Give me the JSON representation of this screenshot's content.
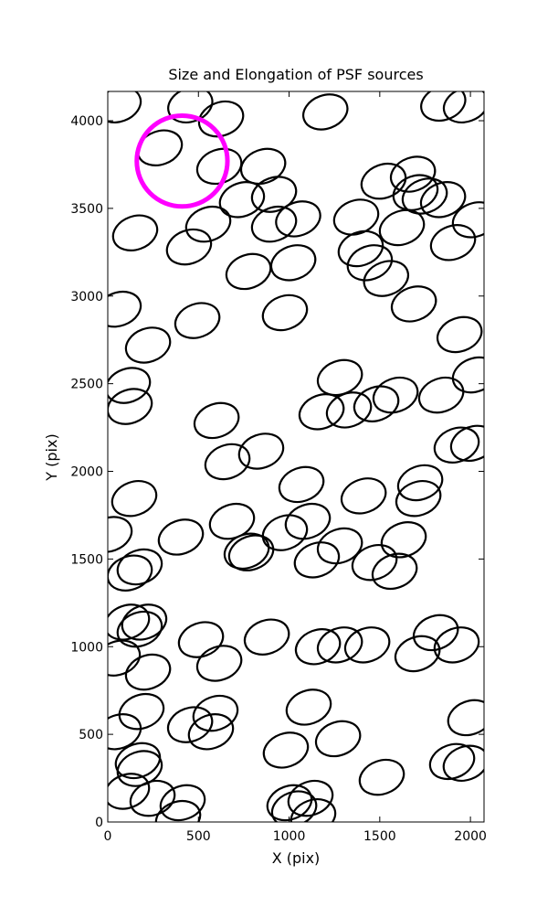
{
  "chart_data": {
    "type": "ellipse",
    "title": "Size and Elongation of PSF sources",
    "xlabel": "X (pix)",
    "ylabel": "Y (pix)",
    "xlim": [
      0,
      2075
    ],
    "ylim": [
      0,
      4167
    ],
    "xticks": [
      0,
      500,
      1000,
      1500,
      2000
    ],
    "yticks": [
      0,
      500,
      1000,
      1500,
      2000,
      2500,
      3000,
      3500,
      4000
    ],
    "color": "#000000",
    "width": 250,
    "height": 190,
    "angle": -20,
    "x": [
      60,
      455,
      625,
      1200,
      1850,
      1975,
      287,
      615,
      857,
      740,
      917,
      917,
      1050,
      554,
      151,
      448,
      776,
      1023,
      1370,
      1395,
      1445,
      1535,
      1521,
      1622,
      1697,
      1683,
      1748,
      1849,
      1904,
      2025,
      1688,
      60,
      494,
      977,
      222,
      1940,
      111,
      121,
      1280,
      1179,
      1330,
      1481,
      1587,
      1839,
      2025,
      600,
      660,
      846,
      1068,
      1411,
      1723,
      1713,
      1924,
      2015,
      146,
      10,
      403,
      685,
      766,
      791,
      977,
      1103,
      1153,
      1280,
      1471,
      1582,
      1632,
      176,
      121,
      106,
      201,
      176,
      55,
      514,
      615,
      222,
      877,
      1159,
      1280,
      1431,
      1708,
      1809,
      1924,
      186,
      594,
      569,
      454,
      60,
      1108,
      1270,
      982,
      1511,
      1999,
      1899,
      1974,
      166,
      176,
      106,
      247,
      413,
      388,
      1002,
      1118,
      1133,
      1028
    ],
    "y": [
      4090,
      4090,
      4010,
      4050,
      4100,
      4090,
      3845,
      3740,
      3740,
      3550,
      3580,
      3410,
      3440,
      3410,
      3360,
      3280,
      3140,
      3190,
      3450,
      3270,
      3190,
      3100,
      3655,
      3390,
      3590,
      3695,
      3570,
      3550,
      3305,
      3435,
      2955,
      2925,
      2860,
      2905,
      2720,
      2780,
      2490,
      2370,
      2535,
      2340,
      2350,
      2385,
      2435,
      2435,
      2550,
      2290,
      2055,
      2115,
      1925,
      1860,
      1935,
      1845,
      2150,
      2160,
      1845,
      1640,
      1625,
      1715,
      1545,
      1535,
      1650,
      1715,
      1495,
      1575,
      1480,
      1430,
      1610,
      1455,
      1420,
      1140,
      1140,
      1100,
      935,
      1040,
      905,
      855,
      1055,
      1000,
      1010,
      1010,
      960,
      1080,
      1010,
      630,
      620,
      515,
      555,
      515,
      655,
      475,
      410,
      255,
      595,
      345,
      335,
      350,
      305,
      175,
      135,
      110,
      20,
      110,
      135,
      30,
      75
    ],
    "highlight": {
      "x": 410,
      "y": 3770,
      "radius": 250,
      "color": "#ff00ff"
    }
  }
}
